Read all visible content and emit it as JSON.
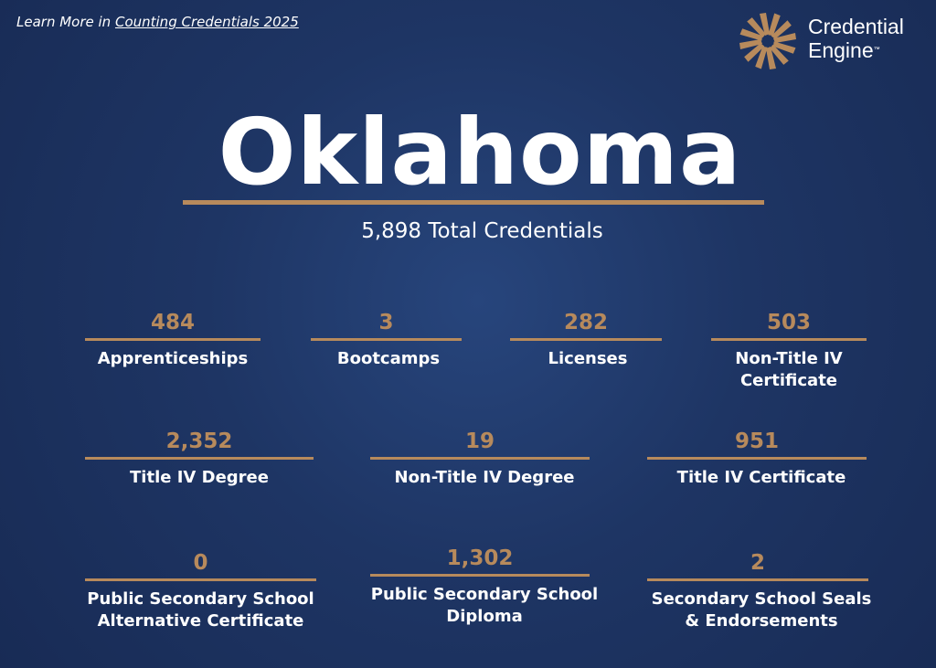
{
  "header": {
    "link_prefix": "Learn More in",
    "link": "Counting Credentials 2025"
  },
  "logo": {
    "line1": "Credential",
    "line2": "Engine",
    "mark": "™"
  },
  "title": "Oklahoma",
  "total": "5,898 Total Credentials",
  "items": [
    {
      "value": "484",
      "label": "Apprenticeships"
    },
    {
      "value": "3",
      "label": "Bootcamps"
    },
    {
      "value": "282",
      "label": "Licenses"
    },
    {
      "value": "503",
      "label": "Non-Title IV Certificate"
    },
    {
      "value": "2,352",
      "label": "Title IV Degree"
    },
    {
      "value": "19",
      "label": "Non-Title IV Degree"
    },
    {
      "value": "951",
      "label": "Title IV Certificate"
    },
    {
      "value": "0",
      "label": "Public Secondary School Alternative Certificate"
    },
    {
      "value": "1,302",
      "label": "Public Secondary School Diploma"
    },
    {
      "value": "2",
      "label": "Secondary School Seals & Endorsements"
    }
  ]
}
